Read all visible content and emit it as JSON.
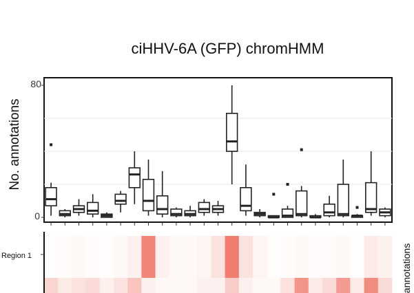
{
  "chart_data": [
    {
      "type": "box",
      "title": "ciHHV-6A (GFP) chromHMM",
      "ylabel": "No. annotations",
      "xlabel": "",
      "ylim": [
        0,
        80
      ],
      "yticks": [
        0,
        80
      ],
      "grid": true,
      "boxes": [
        {
          "min": 1,
          "q1": 7,
          "median": 11,
          "q3": 18,
          "max": 21,
          "outliers": [
            44
          ]
        },
        {
          "min": 0,
          "q1": 1,
          "median": 2,
          "q3": 4,
          "max": 5,
          "outliers": []
        },
        {
          "min": 1,
          "q1": 3,
          "median": 5,
          "q3": 7,
          "max": 11,
          "outliers": []
        },
        {
          "min": 0,
          "q1": 2,
          "median": 4,
          "q3": 9,
          "max": 14,
          "outliers": []
        },
        {
          "min": 0,
          "q1": 0,
          "median": 1,
          "q3": 2,
          "max": 3,
          "outliers": []
        },
        {
          "min": 3,
          "q1": 8,
          "median": 10,
          "q3": 14,
          "max": 16,
          "outliers": []
        },
        {
          "min": 8,
          "q1": 18,
          "median": 26,
          "q3": 30,
          "max": 40,
          "outliers": []
        },
        {
          "min": 1,
          "q1": 4,
          "median": 10,
          "q3": 23,
          "max": 35,
          "outliers": []
        },
        {
          "min": 0,
          "q1": 2,
          "median": 5,
          "q3": 13,
          "max": 28,
          "outliers": []
        },
        {
          "min": 0,
          "q1": 1,
          "median": 2,
          "q3": 5,
          "max": 6,
          "outliers": []
        },
        {
          "min": 0,
          "q1": 1,
          "median": 2,
          "q3": 4,
          "max": 7,
          "outliers": []
        },
        {
          "min": 1,
          "q1": 3,
          "median": 5,
          "q3": 9,
          "max": 11,
          "outliers": []
        },
        {
          "min": 1,
          "q1": 3,
          "median": 5,
          "q3": 7,
          "max": 10,
          "outliers": []
        },
        {
          "min": 20,
          "q1": 40,
          "median": 46,
          "q3": 63,
          "max": 80,
          "outliers": []
        },
        {
          "min": 1,
          "q1": 4,
          "median": 7,
          "q3": 18,
          "max": 32,
          "outliers": []
        },
        {
          "min": 0,
          "q1": 1,
          "median": 2,
          "q3": 3,
          "max": 5,
          "outliers": []
        },
        {
          "min": 0,
          "q1": 0,
          "median": 0,
          "q3": 1,
          "max": 1,
          "outliers": [
            14
          ]
        },
        {
          "min": 0,
          "q1": 0,
          "median": 1,
          "q3": 5,
          "max": 7,
          "outliers": [
            20
          ]
        },
        {
          "min": 0,
          "q1": 1,
          "median": 2,
          "q3": 16,
          "max": 19,
          "outliers": [
            41
          ]
        },
        {
          "min": 0,
          "q1": 0,
          "median": 0,
          "q3": 1,
          "max": 2,
          "outliers": []
        },
        {
          "min": 0,
          "q1": 1,
          "median": 3,
          "q3": 8,
          "max": 13,
          "outliers": []
        },
        {
          "min": 0,
          "q1": 1,
          "median": 2,
          "q3": 20,
          "max": 35,
          "outliers": []
        },
        {
          "min": 0,
          "q1": 0,
          "median": 1,
          "q3": 1,
          "max": 2,
          "outliers": [
            6
          ]
        },
        {
          "min": 1,
          "q1": 3,
          "median": 5,
          "q3": 21,
          "max": 40,
          "outliers": []
        },
        {
          "min": 0,
          "q1": 1,
          "median": 3,
          "q3": 5,
          "max": 6,
          "outliers": []
        }
      ]
    },
    {
      "type": "heatmap",
      "ylabel": "Region 1",
      "right_label": "annotations",
      "low_color": "#ffffff",
      "high_color": "#ee7060",
      "rows": [
        [
          0.02,
          0.03,
          0.05,
          0.03,
          0.02,
          0.05,
          0.1,
          0.85,
          0.1,
          0.05,
          0.05,
          0.08,
          0.2,
          0.9,
          0.2,
          0.08,
          0.02,
          0.03,
          0.05,
          0.03,
          0.03,
          0.05,
          0.02,
          0.15,
          0.1
        ],
        [
          0.3,
          0.15,
          0.2,
          0.25,
          0.1,
          0.2,
          0.4,
          0.1,
          0.05,
          0.05,
          0.05,
          0.1,
          0.1,
          0.35,
          0.1,
          0.05,
          0.05,
          0.2,
          0.75,
          0.15,
          0.25,
          0.7,
          0.15,
          0.8,
          0.25
        ]
      ]
    }
  ]
}
